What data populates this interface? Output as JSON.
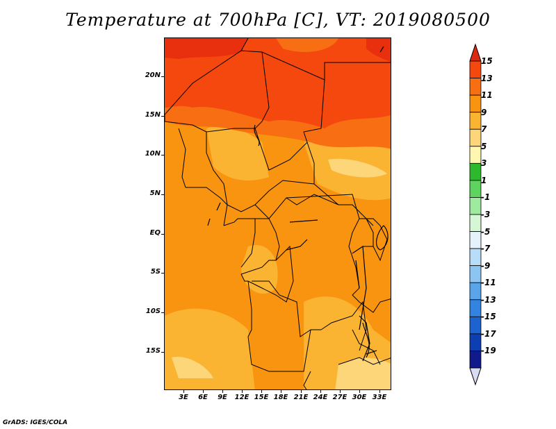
{
  "title": "Temperature at 700hPa [C], VT: 2019080500",
  "credit": "GrADS: IGES/COLA",
  "map": {
    "lat_labels": [
      "20N",
      "15N",
      "10N",
      "5N",
      "EQ",
      "5S",
      "10S",
      "15S"
    ],
    "lat_values": [
      20,
      15,
      10,
      5,
      0,
      -5,
      -10,
      -15
    ],
    "lon_labels": [
      "3E",
      "6E",
      "9E",
      "12E",
      "15E",
      "18E",
      "21E",
      "24E",
      "27E",
      "30E",
      "33E"
    ],
    "lon_values": [
      3,
      6,
      9,
      12,
      15,
      18,
      21,
      24,
      27,
      30,
      33
    ],
    "lat_range": [
      -20,
      25
    ],
    "lon_range": [
      0,
      35
    ]
  },
  "colorbar": {
    "labels": [
      "15",
      "13",
      "11",
      "9",
      "7",
      "5",
      "3",
      "1",
      "-1",
      "-3",
      "-5",
      "-7",
      "-9",
      "-11",
      "-13",
      "-15",
      "-17",
      "-19"
    ],
    "colors": [
      "#f21e12",
      "#f5480f",
      "#f76f12",
      "#f99411",
      "#fbb432",
      "#fdd67a",
      "#fff6b0",
      "#2eb82e",
      "#5ed35e",
      "#9eea9e",
      "#d6f7d6",
      "#e6f2fb",
      "#b8ddf8",
      "#8cc4f2",
      "#5aa5ea",
      "#3383e1",
      "#1c63cf",
      "#0d3fb2",
      "#101a8a",
      "#d9dcf5"
    ]
  },
  "fields": {
    "dark_red": "#e8300f",
    "red": "#f5480f",
    "red_orange": "#f76f12",
    "orange": "#f99411",
    "light_orange": "#fbb432",
    "pale": "#fdd67a"
  }
}
